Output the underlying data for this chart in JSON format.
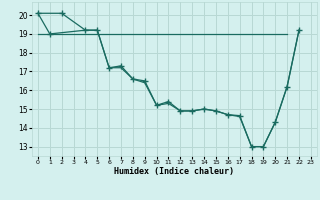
{
  "xlabel": "Humidex (Indice chaleur)",
  "bg_color": "#d4f0ee",
  "grid_color": "#b8d8d4",
  "line_color": "#1a6b60",
  "xlim": [
    -0.5,
    23.5
  ],
  "ylim": [
    12.5,
    20.7
  ],
  "yticks": [
    13,
    14,
    15,
    16,
    17,
    18,
    19,
    20
  ],
  "xticks": [
    0,
    1,
    2,
    3,
    4,
    5,
    6,
    7,
    8,
    9,
    10,
    11,
    12,
    13,
    14,
    15,
    16,
    17,
    18,
    19,
    20,
    21,
    22,
    23
  ],
  "line1_x": [
    0,
    2,
    4,
    5,
    5,
    6,
    7,
    8,
    9,
    10,
    11,
    12,
    13,
    14,
    15,
    16,
    17,
    18,
    19,
    20,
    21,
    22
  ],
  "line1_y": [
    20.1,
    20.1,
    19.2,
    19.2,
    19.2,
    17.2,
    17.2,
    16.6,
    16.5,
    15.2,
    15.4,
    14.9,
    14.9,
    15.0,
    14.9,
    14.7,
    14.65,
    13.0,
    13.0,
    14.3,
    16.2,
    19.2
  ],
  "line2_x": [
    0,
    1,
    4,
    5,
    6,
    7,
    8,
    9,
    10,
    11,
    12,
    13,
    14,
    15,
    16,
    17,
    18,
    19,
    20,
    21,
    22
  ],
  "line2_y": [
    20.1,
    19.0,
    19.2,
    19.2,
    17.2,
    17.3,
    16.6,
    16.4,
    15.2,
    15.3,
    14.9,
    14.9,
    15.0,
    14.9,
    14.7,
    14.6,
    13.0,
    13.0,
    14.3,
    16.2,
    19.2
  ],
  "line3_x": [
    0,
    21
  ],
  "line3_y": [
    19.0,
    19.0
  ],
  "marker_x": [
    0,
    1,
    2,
    4,
    5,
    6,
    7,
    8,
    9,
    10,
    11,
    12,
    13,
    14,
    15,
    16,
    17,
    18,
    19,
    20,
    21,
    22
  ],
  "marker_y": [
    20.1,
    19.0,
    20.1,
    19.2,
    19.2,
    17.2,
    17.3,
    16.6,
    16.5,
    15.2,
    15.35,
    14.9,
    14.9,
    15.0,
    14.9,
    14.7,
    14.65,
    13.0,
    13.0,
    14.3,
    16.2,
    19.2
  ]
}
